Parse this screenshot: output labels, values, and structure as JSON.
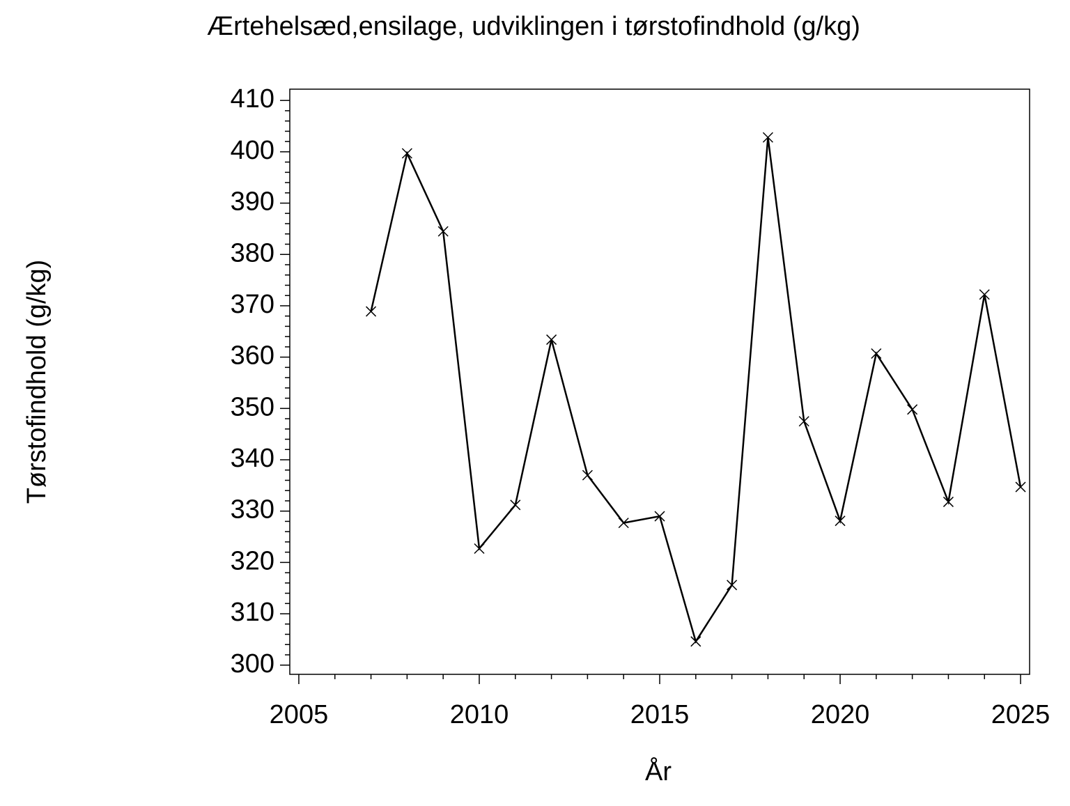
{
  "chart_data": {
    "type": "line",
    "title": "Ærtehelsæd,ensilage,  udviklingen  i  tørstofindhold  (g/kg)",
    "xlabel": "År",
    "ylabel": "Tørstofindhold  (g/kg)",
    "x": [
      2007,
      2008,
      2009,
      2010,
      2011,
      2012,
      2013,
      2014,
      2015,
      2016,
      2017,
      2018,
      2019,
      2020,
      2021,
      2022,
      2023,
      2024,
      2025
    ],
    "series": [
      {
        "name": "Tørstofindhold",
        "color": "#000000",
        "marker": "x",
        "values": [
          368.9,
          399.7,
          384.5,
          322.7,
          331.2,
          363.4,
          337.0,
          327.7,
          329.0,
          304.6,
          315.6,
          402.8,
          347.5,
          328.1,
          360.7,
          349.8,
          331.8,
          372.2,
          334.7
        ]
      }
    ],
    "xlim": [
      2004.75,
      2025.25
    ],
    "xticks": [
      2005,
      2010,
      2015,
      2020,
      2025
    ],
    "xminorticks": [
      2006,
      2007,
      2008,
      2009,
      2011,
      2012,
      2013,
      2014,
      2016,
      2017,
      2018,
      2019,
      2021,
      2022,
      2023,
      2024
    ],
    "ylim": [
      298.2,
      412.2
    ],
    "yticks": [
      300,
      310,
      320,
      330,
      340,
      350,
      360,
      370,
      380,
      390,
      400,
      410
    ],
    "yminorticks": [
      302,
      304,
      306,
      308,
      312,
      314,
      316,
      318,
      322,
      324,
      326,
      328,
      332,
      334,
      336,
      338,
      342,
      344,
      346,
      348,
      352,
      354,
      356,
      358,
      362,
      364,
      366,
      368,
      372,
      374,
      376,
      378,
      382,
      384,
      386,
      388,
      392,
      394,
      396,
      398,
      402,
      404,
      406,
      408
    ],
    "grid": false
  }
}
